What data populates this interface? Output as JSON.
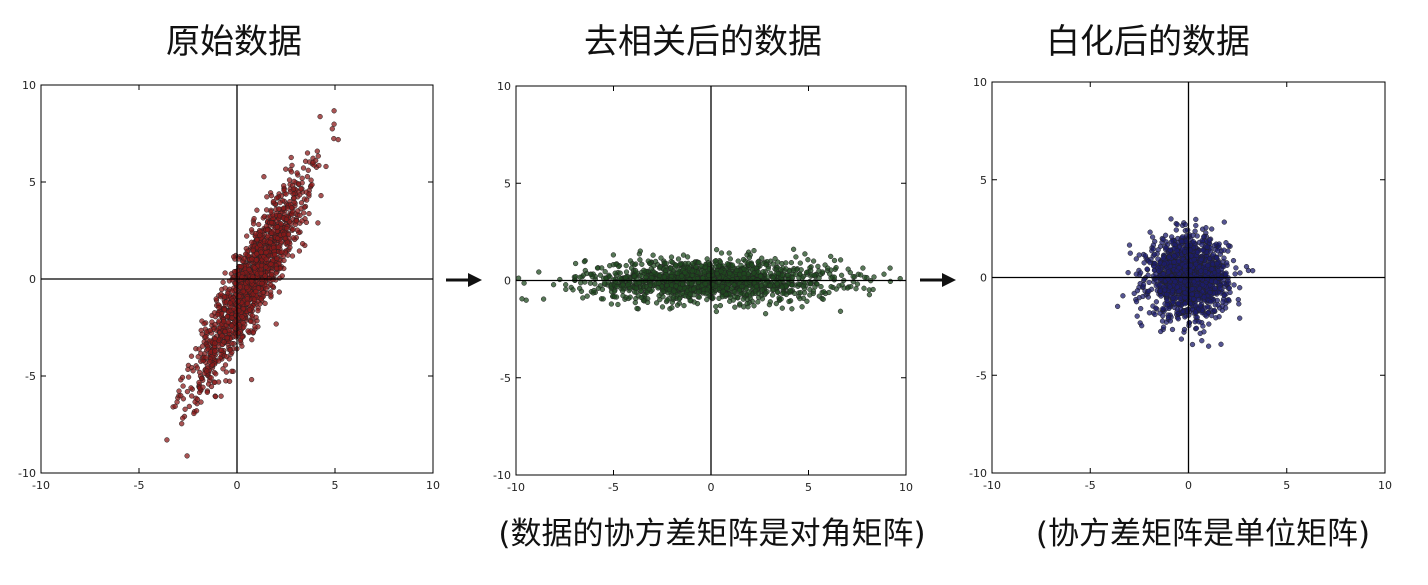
{
  "panels": [
    {
      "title": "原始数据",
      "caption": ""
    },
    {
      "title": "去相关后的数据",
      "caption": "(数据的协方差矩阵是对角矩阵)"
    },
    {
      "title": "白化后的数据",
      "caption": "(协方差矩阵是单位矩阵)"
    }
  ],
  "chart_data": [
    {
      "type": "scatter",
      "title": "原始数据",
      "xlim": [
        -10,
        10
      ],
      "ylim": [
        -10,
        10
      ],
      "xticks": [
        "-10",
        "-5",
        "0",
        "5",
        "10"
      ],
      "yticks": [
        "10",
        "5",
        "0",
        "-5",
        "-10"
      ],
      "color": "#8b1a1a",
      "distribution": {
        "mean": [
          0.8,
          0
        ],
        "std_major": 3.0,
        "std_minor": 0.55,
        "angle_deg": 63
      },
      "n_points": 1400
    },
    {
      "type": "scatter",
      "title": "去相关后的数据",
      "xlim": [
        -10,
        10
      ],
      "ylim": [
        -10,
        10
      ],
      "xticks": [
        "-10",
        "-5",
        "0",
        "5",
        "10"
      ],
      "yticks": [
        "10",
        "5",
        "0",
        "-5",
        "-10"
      ],
      "color": "#1f4a1f",
      "distribution": {
        "mean": [
          0,
          0
        ],
        "std_major": 3.2,
        "std_minor": 0.55,
        "angle_deg": 0
      },
      "n_points": 1400
    },
    {
      "type": "scatter",
      "title": "白化后的数据",
      "xlim": [
        -10,
        10
      ],
      "ylim": [
        -10,
        10
      ],
      "xticks": [
        "-10",
        "-5",
        "0",
        "5",
        "10"
      ],
      "yticks": [
        "10",
        "5",
        "0",
        "-5",
        "-10"
      ],
      "color": "#1c1c6e",
      "distribution": {
        "mean": [
          0,
          0
        ],
        "std_major": 1.0,
        "std_minor": 1.0,
        "angle_deg": 0
      },
      "n_points": 1400
    }
  ],
  "colors": {
    "arrow": "#111111",
    "axes": "#000000"
  }
}
